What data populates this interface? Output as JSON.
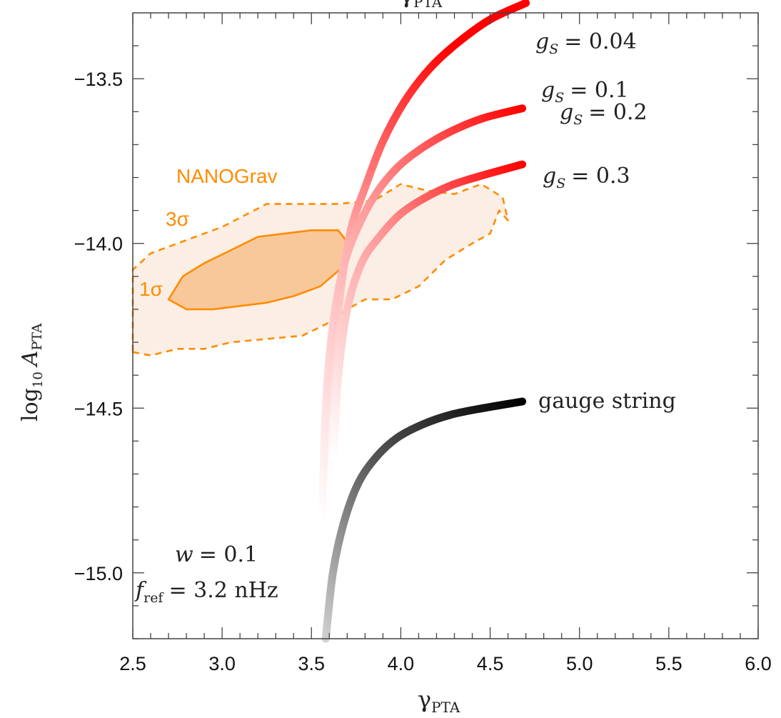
{
  "chart_data": {
    "type": "line",
    "xlabel": "γ",
    "xlabel_sub": "PTA",
    "ylabel": "log",
    "ylabel_sub10": "10",
    "ylabel_A": "A",
    "ylabel_sub": "PTA",
    "top_label": "γ",
    "top_label_sub": "PTA",
    "xlim": [
      2.5,
      6.0
    ],
    "ylim": [
      -15.2,
      -13.3
    ],
    "xticks": [
      2.5,
      3.0,
      3.5,
      4.0,
      4.5,
      5.0,
      5.5,
      6.0
    ],
    "xtick_labels": [
      "2.5",
      "3.0",
      "3.5",
      "4.0",
      "4.5",
      "5.0",
      "5.5",
      "6.0"
    ],
    "yticks": [
      -13.5,
      -14.0,
      -14.5,
      -15.0
    ],
    "ytick_labels": [
      "−13.5",
      "−14.0",
      "−14.5",
      "−15.0"
    ],
    "colors": {
      "contour": "#ff8c00",
      "contour_fill_1sigma": "#f8c89a",
      "contour_fill_3sigma": "#fbeee4",
      "cosmic": "#ff0000",
      "gauge": "#000000"
    },
    "series": [
      {
        "name": "g_S = 0.04",
        "color": "#ff0000",
        "x": [
          3.6,
          3.62,
          3.66,
          3.72,
          3.8,
          3.9,
          4.02,
          4.16,
          4.32,
          4.5,
          4.7
        ],
        "y": [
          -14.7,
          -14.42,
          -14.16,
          -13.96,
          -13.83,
          -13.69,
          -13.57,
          -13.47,
          -13.39,
          -13.32,
          -13.27
        ]
      },
      {
        "name": "g_S = 0.1, 0.2",
        "color": "#ff0000",
        "x": [
          3.56,
          3.58,
          3.62,
          3.68,
          3.76,
          3.86,
          3.98,
          4.12,
          4.28,
          4.46,
          4.68
        ],
        "y": [
          -14.85,
          -14.5,
          -14.25,
          -14.07,
          -13.95,
          -13.85,
          -13.77,
          -13.71,
          -13.66,
          -13.62,
          -13.59
        ]
      },
      {
        "name": "g_S = 0.3",
        "color": "#ff0000",
        "x": [
          3.62,
          3.65,
          3.7,
          3.78,
          3.88,
          4.0,
          4.14,
          4.3,
          4.48,
          4.68
        ],
        "y": [
          -14.65,
          -14.4,
          -14.2,
          -14.06,
          -13.98,
          -13.91,
          -13.86,
          -13.82,
          -13.79,
          -13.76
        ]
      },
      {
        "name": "gauge string",
        "color": "#000000",
        "x": [
          3.58,
          3.62,
          3.68,
          3.76,
          3.86,
          3.98,
          4.12,
          4.28,
          4.46,
          4.68
        ],
        "y": [
          -15.2,
          -15.0,
          -14.85,
          -14.73,
          -14.65,
          -14.59,
          -14.55,
          -14.52,
          -14.5,
          -14.48
        ]
      }
    ],
    "contours": [
      {
        "name": "3σ",
        "style": "dashed",
        "fill": "#fbeee4",
        "stroke": "#ff8c00",
        "x": [
          2.5,
          2.6,
          2.75,
          2.9,
          3.05,
          3.25,
          3.45,
          3.6,
          3.7,
          3.8,
          3.95,
          4.1,
          4.25,
          4.4,
          4.5,
          4.55,
          4.6,
          4.57,
          4.45,
          4.3,
          4.15,
          4.0,
          3.85,
          3.65,
          3.45,
          3.25,
          3.0,
          2.8,
          2.6,
          2.5
        ],
        "y": [
          -14.33,
          -14.34,
          -14.32,
          -14.32,
          -14.3,
          -14.29,
          -14.28,
          -14.24,
          -14.2,
          -14.17,
          -14.17,
          -14.13,
          -14.05,
          -14.0,
          -13.97,
          -13.9,
          -13.93,
          -13.86,
          -13.82,
          -13.85,
          -13.84,
          -13.82,
          -13.87,
          -13.88,
          -13.88,
          -13.88,
          -13.95,
          -13.99,
          -14.03,
          -14.08
        ]
      },
      {
        "name": "1σ",
        "style": "solid",
        "fill": "#f8c89a",
        "stroke": "#ff8c00",
        "x": [
          2.7,
          2.8,
          2.95,
          3.1,
          3.25,
          3.4,
          3.55,
          3.7,
          3.72,
          3.65,
          3.5,
          3.35,
          3.2,
          3.05,
          2.9,
          2.78,
          2.7
        ],
        "y": [
          -14.17,
          -14.2,
          -14.2,
          -14.19,
          -14.18,
          -14.16,
          -14.13,
          -14.06,
          -14.01,
          -13.96,
          -13.96,
          -13.97,
          -13.98,
          -14.02,
          -14.06,
          -14.1,
          -14.17
        ]
      }
    ],
    "annotations": [
      {
        "text": "NANOGrav",
        "kind": "nano"
      },
      {
        "text": "3σ",
        "kind": "nano"
      },
      {
        "text": "1σ",
        "kind": "nano"
      },
      {
        "text": "gauge string",
        "kind": "serif"
      }
    ],
    "gs_labels": [
      {
        "text": "= 0.04"
      },
      {
        "text": "= 0.1"
      },
      {
        "text": "= 0.2"
      },
      {
        "text": "= 0.3"
      }
    ],
    "params": {
      "w_label": "w",
      "w_value": "= 0.1",
      "f_label": "f",
      "f_sub": "ref",
      "f_value": "= 3.2 nHz"
    },
    "grid": false,
    "legend": "none"
  }
}
